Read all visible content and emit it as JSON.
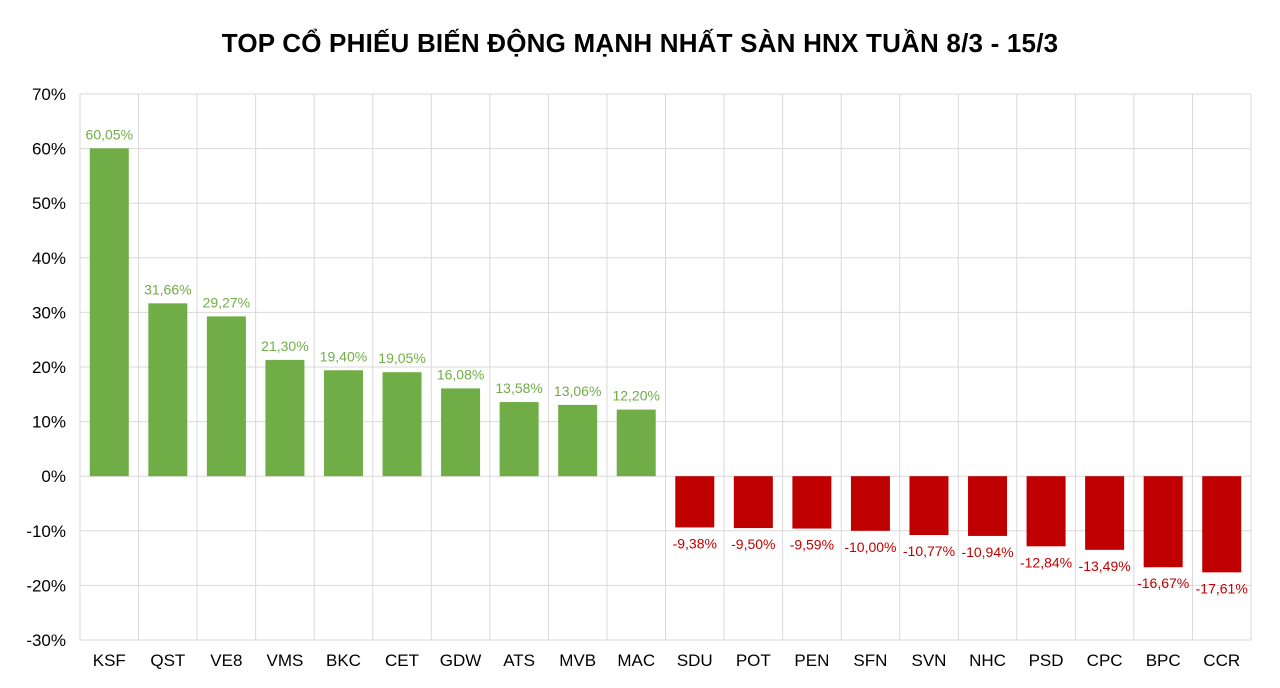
{
  "chart_data": {
    "type": "bar",
    "title": "TOP CỔ PHIẾU BIẾN ĐỘNG MẠNH NHẤT SÀN HNX TUẦN 8/3 - 15/3",
    "xlabel": "",
    "ylabel": "",
    "ylim": [
      -30,
      70
    ],
    "ytick_step": 10,
    "yticks": [
      "-30%",
      "-20%",
      "-10%",
      "0%",
      "10%",
      "20%",
      "30%",
      "40%",
      "50%",
      "60%",
      "70%"
    ],
    "grid": true,
    "colors": {
      "positive": "#70AD47",
      "negative": "#C00000",
      "grid": "#D9D9D9"
    },
    "categories": [
      "KSF",
      "QST",
      "VE8",
      "VMS",
      "BKC",
      "CET",
      "GDW",
      "ATS",
      "MVB",
      "MAC",
      "SDU",
      "POT",
      "PEN",
      "SFN",
      "SVN",
      "NHC",
      "PSD",
      "CPC",
      "BPC",
      "CCR"
    ],
    "values": [
      60.05,
      31.66,
      29.27,
      21.3,
      19.4,
      19.05,
      16.08,
      13.58,
      13.06,
      12.2,
      -9.38,
      -9.5,
      -9.59,
      -10.0,
      -10.77,
      -10.94,
      -12.84,
      -13.49,
      -16.67,
      -17.61
    ],
    "data_labels": [
      "60,05%",
      "31,66%",
      "29,27%",
      "21,30%",
      "19,40%",
      "19,05%",
      "16,08%",
      "13,58%",
      "13,06%",
      "12,20%",
      "-9,38%",
      "-9,50%",
      "-9,59%",
      "-10,00%",
      "-10,77%",
      "-10,94%",
      "-12,84%",
      "-13,49%",
      "-16,67%",
      "-17,61%"
    ]
  }
}
